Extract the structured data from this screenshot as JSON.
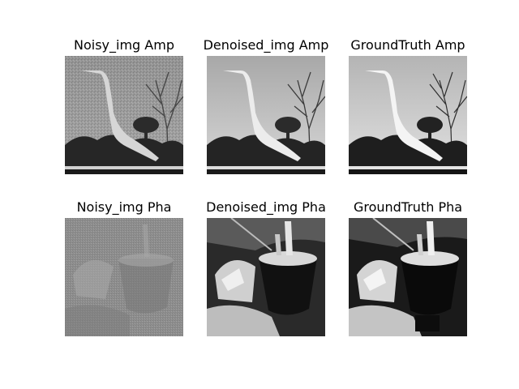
{
  "figure": {
    "panels": [
      {
        "title": "Noisy_img Amp",
        "subject": "egret-scene",
        "variant": "noisy-amplitude"
      },
      {
        "title": "Denoised_img Amp",
        "subject": "egret-scene",
        "variant": "denoised-amplitude"
      },
      {
        "title": "GroundTruth Amp",
        "subject": "egret-scene",
        "variant": "groundtruth-amplitude"
      },
      {
        "title": "Noisy_img Pha",
        "subject": "fondue-scene",
        "variant": "noisy-phase"
      },
      {
        "title": "Denoised_img Pha",
        "subject": "fondue-scene",
        "variant": "denoised-phase"
      },
      {
        "title": "GroundTruth Pha",
        "subject": "fondue-scene",
        "variant": "groundtruth-phase"
      }
    ]
  }
}
